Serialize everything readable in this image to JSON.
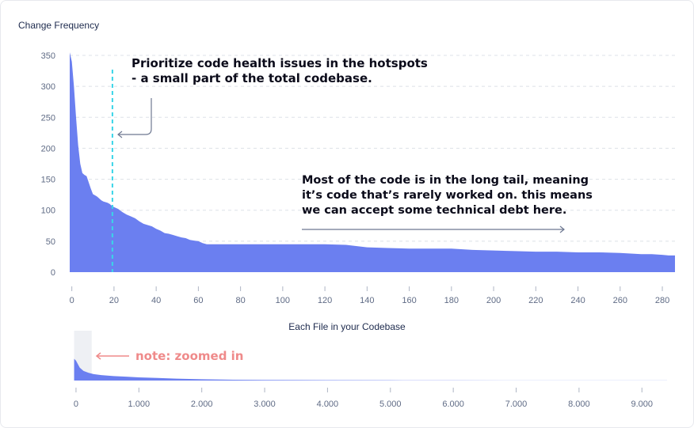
{
  "chart_data": [
    {
      "type": "area",
      "ylabel": "Change Frequency",
      "xlabel": "Each File in your Codebase",
      "xlim": [
        -1,
        286
      ],
      "ylim": [
        0,
        350
      ],
      "x_ticks": [
        0,
        20,
        40,
        60,
        80,
        100,
        120,
        140,
        160,
        180,
        200,
        220,
        240,
        260,
        280
      ],
      "y_ticks": [
        0,
        50,
        100,
        150,
        200,
        250,
        300,
        350
      ],
      "grid": "horizontal-dashed",
      "color": "#6b7ff0",
      "series": [
        {
          "x": [
            -1,
            0,
            1,
            2,
            3,
            4,
            5,
            6,
            7,
            8,
            9,
            10,
            11,
            12,
            13,
            14,
            15,
            16,
            17,
            18,
            19,
            20,
            22,
            24,
            26,
            28,
            30,
            32,
            34,
            36,
            38,
            40,
            42,
            44,
            46,
            48,
            50,
            52,
            54,
            56,
            58,
            60,
            62,
            64,
            66,
            80,
            100,
            120,
            130,
            140,
            150,
            160,
            170,
            180,
            190,
            200,
            210,
            220,
            230,
            240,
            250,
            260,
            265,
            270,
            275,
            280,
            283,
            286
          ],
          "y": [
            355,
            340,
            300,
            250,
            205,
            175,
            160,
            157,
            155,
            145,
            135,
            126,
            124,
            122,
            119,
            116,
            114,
            113,
            112,
            110,
            107,
            105,
            102,
            97,
            93,
            90,
            87,
            82,
            78,
            76,
            74,
            70,
            67,
            63,
            62,
            60,
            58,
            56,
            55,
            52,
            51,
            50,
            47,
            45,
            45,
            45,
            45,
            45,
            44,
            40,
            39,
            38,
            38,
            38,
            36,
            35,
            34,
            33,
            33,
            32,
            32,
            31,
            30,
            29,
            29,
            28,
            27,
            27
          ]
        }
      ],
      "reference_line": {
        "x": 20,
        "style": "dashed",
        "color": "#3ad5e8"
      }
    },
    {
      "type": "area",
      "note": "zoomed-out overview",
      "xlim": [
        -100,
        9400
      ],
      "x_ticks": [
        0,
        1000,
        2000,
        3000,
        4000,
        5000,
        6000,
        7000,
        8000,
        9000
      ],
      "x_tick_labels": [
        "0",
        "1.000",
        "2.000",
        "3.000",
        "4.000",
        "5.000",
        "6.000",
        "7.000",
        "8.000",
        "9.000"
      ],
      "ylim": [
        0,
        350
      ],
      "highlight_x_range": [
        -30,
        250
      ],
      "color": "#6b7ff0",
      "series": [
        {
          "x": [
            -30,
            0,
            60,
            120,
            200,
            280,
            400,
            600,
            800,
            1000,
            1300,
            1600,
            2000,
            2500,
            3000,
            4000,
            5000,
            6000,
            7000,
            8000,
            9000,
            9400
          ],
          "y": [
            340,
            310,
            200,
            150,
            120,
            100,
            85,
            70,
            60,
            50,
            40,
            30,
            20,
            13,
            9,
            6,
            4,
            3,
            2,
            1.5,
            1,
            1
          ]
        }
      ]
    }
  ],
  "annotations": {
    "hotspots": [
      "Prioritize code health issues in the hotspots",
      "- a small part of the total codebase."
    ],
    "long_tail": [
      "Most of the code is in the long tail, meaning",
      "it’s code that’s rarely worked on. this means",
      "we can accept some technical debt here."
    ],
    "zoom_note": "note: zoomed in"
  },
  "colors": {
    "area": "#6b7ff0",
    "reference_line": "#3ad5e8",
    "note": "#ef8a8a",
    "arrow": "#6e7891",
    "grid": "#dde1e8",
    "tick_text": "#5f6b85"
  }
}
